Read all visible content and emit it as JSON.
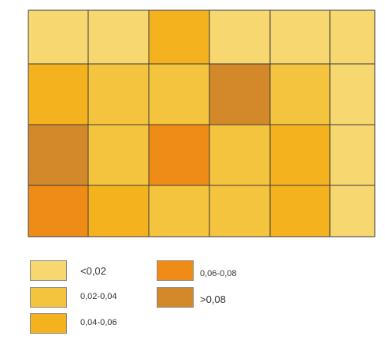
{
  "chart_data": {
    "type": "heatmap",
    "rows": 4,
    "cols": 6,
    "class_grid": [
      [
        0,
        0,
        2,
        0,
        0,
        0
      ],
      [
        2,
        1,
        1,
        4,
        1,
        0
      ],
      [
        4,
        1,
        3,
        1,
        2,
        0
      ],
      [
        3,
        2,
        1,
        1,
        2,
        0
      ]
    ],
    "legend": [
      {
        "label": "<0,02",
        "color": "#f7d770"
      },
      {
        "label": "0,02-0,04",
        "color": "#f5c43e"
      },
      {
        "label": "0,04-0,06",
        "color": "#f4b21f"
      },
      {
        "label": "0,06-0,08",
        "color": "#ef8c18"
      },
      {
        "label": ">0,08",
        "color": "#d3892a"
      }
    ],
    "legend_position": "bottom-left"
  }
}
